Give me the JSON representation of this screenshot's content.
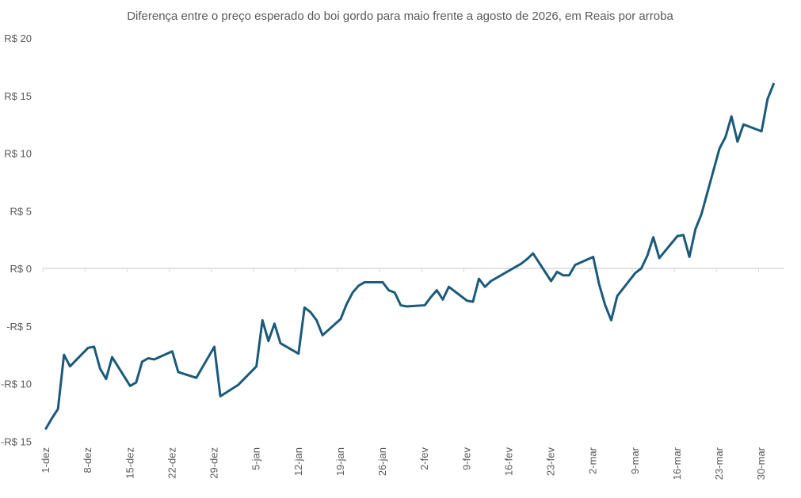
{
  "chart_data": {
    "type": "line",
    "title": "Diferença entre o preço esperado do boi gordo para maio frente a  agosto de 2026, em Reais por arroba",
    "xlabel": "",
    "ylabel": "",
    "ylim": [
      -15,
      20
    ],
    "y_ticks": [
      {
        "value": 20,
        "label": "R$ 20"
      },
      {
        "value": 15,
        "label": "R$ 15"
      },
      {
        "value": 10,
        "label": "R$ 10"
      },
      {
        "value": 5,
        "label": "R$ 5"
      },
      {
        "value": 0,
        "label": "R$ 0"
      },
      {
        "value": -5,
        "label": "-R$ 5"
      },
      {
        "value": -10,
        "label": "-R$ 10"
      },
      {
        "value": -15,
        "label": "-R$ 15"
      }
    ],
    "x_tick_labels": [
      "1-dez",
      "8-dez",
      "15-dez",
      "22-dez",
      "29-dez",
      "5-jan",
      "12-jan",
      "19-jan",
      "26-jan",
      "2-fev",
      "9-fev",
      "16-fev",
      "23-fev",
      "2-mar",
      "9-mar",
      "16-mar",
      "23-mar",
      "30-mar"
    ],
    "grid": false,
    "legend": "none",
    "line_color": "#1b5a7a",
    "axis_color": "#d9d9d9",
    "x": [
      "1-dez",
      "2-dez",
      "3-dez",
      "4-dez",
      "5-dez",
      "8-dez",
      "9-dez",
      "10-dez",
      "11-dez",
      "12-dez",
      "15-dez",
      "16-dez",
      "17-dez",
      "18-dez",
      "19-dez",
      "22-dez",
      "23-dez",
      "26-dez",
      "29-dez",
      "30-dez",
      "2-jan",
      "5-jan",
      "6-jan",
      "7-jan",
      "8-jan",
      "9-jan",
      "12-jan",
      "13-jan",
      "14-jan",
      "15-jan",
      "16-jan",
      "19-jan",
      "20-jan",
      "21-jan",
      "22-jan",
      "23-jan",
      "26-jan",
      "27-jan",
      "28-jan",
      "29-jan",
      "30-jan",
      "2-fev",
      "3-fev",
      "4-fev",
      "5-fev",
      "6-fev",
      "9-fev",
      "10-fev",
      "11-fev",
      "12-fev",
      "13-fev",
      "18-fev",
      "19-fev",
      "20-fev",
      "23-fev",
      "24-fev",
      "25-fev",
      "26-fev",
      "27-fev",
      "2-mar",
      "3-mar",
      "4-mar",
      "5-mar",
      "6-mar",
      "9-mar",
      "10-mar",
      "11-mar",
      "12-mar",
      "13-mar",
      "16-mar",
      "17-mar",
      "18-mar",
      "19-mar",
      "20-mar",
      "23-mar",
      "24-mar",
      "25-mar",
      "26-mar",
      "27-mar",
      "30-mar",
      "31-mar",
      "1-abr"
    ],
    "values": [
      -13.9,
      -13.0,
      -12.2,
      -7.5,
      -8.5,
      -6.9,
      -6.8,
      -8.7,
      -9.6,
      -7.7,
      -10.2,
      -9.9,
      -8.1,
      -7.8,
      -7.9,
      -7.2,
      -9.0,
      -9.5,
      -6.8,
      -11.1,
      -10.1,
      -8.5,
      -4.5,
      -6.3,
      -4.8,
      -6.5,
      -7.4,
      -3.4,
      -3.8,
      -4.5,
      -5.8,
      -4.4,
      -3.1,
      -2.1,
      -1.5,
      -1.2,
      -1.2,
      -1.9,
      -2.1,
      -3.2,
      -3.3,
      -3.2,
      -2.5,
      -1.9,
      -2.7,
      -1.6,
      -2.8,
      -2.9,
      -0.9,
      -1.6,
      -1.1,
      0.4,
      0.8,
      1.3,
      -1.1,
      -0.3,
      -0.6,
      -0.6,
      0.3,
      1.0,
      -1.4,
      -3.2,
      -4.5,
      -2.4,
      -0.4,
      0.0,
      1.1,
      2.7,
      0.9,
      2.8,
      2.9,
      1.0,
      3.4,
      4.7,
      10.4,
      11.4,
      13.2,
      11.0,
      12.5,
      11.9,
      14.7,
      16.0
    ]
  }
}
